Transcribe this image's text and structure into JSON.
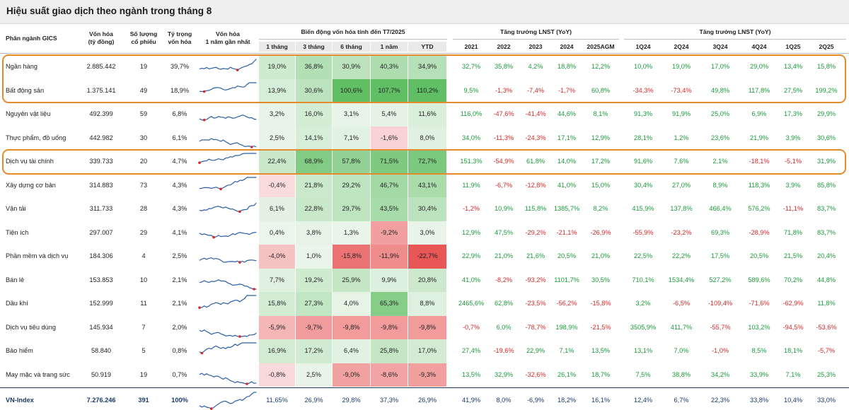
{
  "title": "Hiệu suất giao dịch theo ngành trong tháng 8",
  "headers": {
    "sector": "Phân ngành GICS",
    "mcap": [
      "Vốn hóa",
      "(tỷ đồng)"
    ],
    "count": [
      "Số lượng",
      "cổ phiếu"
    ],
    "weight": [
      "Tỷ trọng",
      "vốn hóa"
    ],
    "spark": [
      "Vốn hóa",
      "1 năm gần nhất"
    ],
    "group_change": "Biến động vốn hóa tính đến T7/2025",
    "group_lnst1": "Tăng trưởng LNST (YoY)",
    "group_lnst2": "Tăng trưởng LNST (YoY)",
    "change_cols": [
      "1 tháng",
      "3 tháng",
      "6 tháng",
      "1 năm",
      "YTD"
    ],
    "lnst1_cols": [
      "2021",
      "2022",
      "2023",
      "2024",
      "2025AGM"
    ],
    "lnst2_cols": [
      "1Q24",
      "2Q24",
      "3Q24",
      "4Q24",
      "1Q25",
      "2Q25"
    ]
  },
  "colors": {
    "positive_text": "#1a9a3a",
    "negative_text": "#d42a2a",
    "highlight_border": "#e58b2c",
    "total_text": "#1b3a6b"
  },
  "rows": [
    {
      "name": "Ngân hàng",
      "mcap": "2.885.442",
      "count": "19",
      "weight": "39,7%",
      "change": [
        "19,0%",
        "36,8%",
        "30,9%",
        "40,3%",
        "34,9%"
      ],
      "heat": [
        0.19,
        0.368,
        0.309,
        0.403,
        0.349
      ],
      "lnst1": [
        "32,7%",
        "35,8%",
        "4,2%",
        "18,8%",
        "12,2%"
      ],
      "lnst2": [
        "10,0%",
        "19,0%",
        "17,0%",
        "29,0%",
        "13,4%",
        "15,8%"
      ],
      "highlight": true
    },
    {
      "name": "Bất động sản",
      "mcap": "1.375.141",
      "count": "49",
      "weight": "18,9%",
      "change": [
        "13,9%",
        "30,6%",
        "100,6%",
        "107,7%",
        "110,2%"
      ],
      "heat": [
        0.139,
        0.306,
        1.006,
        1.077,
        1.102
      ],
      "lnst1": [
        "9,5%",
        "-1,3%",
        "-7,4%",
        "-1,7%",
        "60,8%"
      ],
      "lnst2": [
        "-34,3%",
        "-73,4%",
        "49,8%",
        "117,8%",
        "27,5%",
        "199,2%"
      ],
      "highlight": true
    },
    {
      "name": "Nguyên vật liệu",
      "mcap": "492.399",
      "count": "59",
      "weight": "6,8%",
      "change": [
        "3,2%",
        "16,0%",
        "3,1%",
        "5,4%",
        "11,6%"
      ],
      "heat": [
        0.032,
        0.16,
        0.031,
        0.054,
        0.116
      ],
      "lnst1": [
        "116,0%",
        "-47,6%",
        "-41,4%",
        "44,6%",
        "8,1%"
      ],
      "lnst2": [
        "91,3%",
        "91,9%",
        "25,0%",
        "6,9%",
        "17,3%",
        "29,9%"
      ]
    },
    {
      "name": "Thực phẩm, đồ uống",
      "mcap": "442.982",
      "count": "30",
      "weight": "6,1%",
      "change": [
        "2,5%",
        "14,1%",
        "7,1%",
        "-1,6%",
        "8,0%"
      ],
      "heat": [
        0.025,
        0.141,
        0.071,
        -0.016,
        0.08
      ],
      "lnst1": [
        "34,0%",
        "-11,3%",
        "-24,3%",
        "17,1%",
        "12,9%"
      ],
      "lnst2": [
        "28,1%",
        "1,2%",
        "23,6%",
        "21,9%",
        "3,9%",
        "30,6%"
      ]
    },
    {
      "name": "Dịch vụ tài chính",
      "mcap": "339.733",
      "count": "20",
      "weight": "4,7%",
      "change": [
        "22,4%",
        "68,9%",
        "57,8%",
        "71,5%",
        "72,7%"
      ],
      "heat": [
        0.224,
        0.689,
        0.578,
        0.715,
        0.727
      ],
      "lnst1": [
        "151,3%",
        "-54,9%",
        "61,8%",
        "14,0%",
        "17,2%"
      ],
      "lnst2": [
        "91,6%",
        "7,6%",
        "2,1%",
        "-18,1%",
        "-5,1%",
        "31,9%"
      ],
      "highlight": true
    },
    {
      "name": "Xây dựng cơ bản",
      "mcap": "314.883",
      "count": "73",
      "weight": "4,3%",
      "change": [
        "-0,4%",
        "21,8%",
        "29,2%",
        "46,7%",
        "43,1%"
      ],
      "heat": [
        -0.004,
        0.218,
        0.292,
        0.467,
        0.431
      ],
      "lnst1": [
        "11,9%",
        "-6,7%",
        "-12,8%",
        "41,0%",
        "15,0%"
      ],
      "lnst2": [
        "30,4%",
        "27,0%",
        "8,9%",
        "118,3%",
        "3,9%",
        "85,8%"
      ]
    },
    {
      "name": "Vận tải",
      "mcap": "311.733",
      "count": "28",
      "weight": "4,3%",
      "change": [
        "6,1%",
        "22,8%",
        "29,7%",
        "43,5%",
        "30,4%"
      ],
      "heat": [
        0.061,
        0.228,
        0.297,
        0.435,
        0.304
      ],
      "lnst1": [
        "-1,2%",
        "10,9%",
        "115,8%",
        "1385,7%",
        "8,2%"
      ],
      "lnst2": [
        "415,9%",
        "137,8%",
        "466,4%",
        "576,2%",
        "-11,1%",
        "83,7%"
      ]
    },
    {
      "name": "Tiện ích",
      "mcap": "297.007",
      "count": "29",
      "weight": "4,1%",
      "change": [
        "0,4%",
        "3,8%",
        "1,3%",
        "-9,2%",
        "3,0%"
      ],
      "heat": [
        0.004,
        0.038,
        0.013,
        -0.092,
        0.03
      ],
      "lnst1": [
        "12,9%",
        "47,5%",
        "-29,2%",
        "-21,1%",
        "-26,9%"
      ],
      "lnst2": [
        "-55,9%",
        "-23,2%",
        "69,3%",
        "-28,9%",
        "71,8%",
        "83,7%"
      ]
    },
    {
      "name": "Phần mềm và dịch vụ",
      "mcap": "184.306",
      "count": "4",
      "weight": "2,5%",
      "change": [
        "-4,0%",
        "1,0%",
        "-15,8%",
        "-11,9%",
        "-22,7%"
      ],
      "heat": [
        -0.04,
        0.01,
        -0.158,
        -0.119,
        -0.227
      ],
      "lnst1": [
        "22,9%",
        "21,0%",
        "21,6%",
        "20,5%",
        "21,0%"
      ],
      "lnst2": [
        "22,5%",
        "22,2%",
        "17,5%",
        "20,5%",
        "21,5%",
        "20,4%"
      ]
    },
    {
      "name": "Bán lẻ",
      "mcap": "153.853",
      "count": "10",
      "weight": "2,1%",
      "change": [
        "7,7%",
        "19,2%",
        "25,9%",
        "9,9%",
        "20,8%"
      ],
      "heat": [
        0.077,
        0.192,
        0.259,
        0.099,
        0.208
      ],
      "lnst1": [
        "41,0%",
        "-8,2%",
        "-93,2%",
        "1101,7%",
        "30,5%"
      ],
      "lnst2": [
        "710,1%",
        "1534,4%",
        "527,2%",
        "589,6%",
        "70,2%",
        "44,8%"
      ]
    },
    {
      "name": "Dầu khí",
      "mcap": "152.999",
      "count": "11",
      "weight": "2,1%",
      "change": [
        "15,8%",
        "27,3%",
        "4,0%",
        "65,3%",
        "8,8%"
      ],
      "heat": [
        0.158,
        0.273,
        0.04,
        0.653,
        0.088
      ],
      "lnst1": [
        "2465,6%",
        "62,8%",
        "-23,5%",
        "-56,2%",
        "-15,8%"
      ],
      "lnst2": [
        "3,2%",
        "-6,5%",
        "-109,4%",
        "-71,6%",
        "-62,9%",
        "11,8%"
      ]
    },
    {
      "name": "Dịch vụ tiêu dùng",
      "mcap": "145.934",
      "count": "7",
      "weight": "2,0%",
      "change": [
        "-5,9%",
        "-9,7%",
        "-9,8%",
        "-9,8%",
        "-9,8%"
      ],
      "heat": [
        -0.059,
        -0.097,
        -0.098,
        -0.098,
        -0.098
      ],
      "lnst1": [
        "-0,7%",
        "6,0%",
        "-78,7%",
        "198,9%",
        "-21,5%"
      ],
      "lnst2": [
        "3505,9%",
        "411,7%",
        "-55,7%",
        "103,2%",
        "-94,5%",
        "-53,6%"
      ]
    },
    {
      "name": "Bảo hiểm",
      "mcap": "58.840",
      "count": "5",
      "weight": "0,8%",
      "change": [
        "16,9%",
        "17,2%",
        "6,4%",
        "25,8%",
        "17,0%"
      ],
      "heat": [
        0.169,
        0.172,
        0.064,
        0.258,
        0.17
      ],
      "lnst1": [
        "27,4%",
        "-19,6%",
        "22,9%",
        "7,1%",
        "13,5%"
      ],
      "lnst2": [
        "13,1%",
        "7,0%",
        "-1,0%",
        "8,5%",
        "18,1%",
        "-5,7%"
      ]
    },
    {
      "name": "May mặc và trang sức",
      "mcap": "50.919",
      "count": "19",
      "weight": "0,7%",
      "change": [
        "-0,8%",
        "2,5%",
        "-9,0%",
        "-8,6%",
        "-9,3%"
      ],
      "heat": [
        -0.008,
        0.025,
        -0.09,
        -0.086,
        -0.093
      ],
      "lnst1": [
        "13,5%",
        "32,9%",
        "-32,6%",
        "26,1%",
        "18,7%"
      ],
      "lnst2": [
        "7,5%",
        "38,8%",
        "34,2%",
        "33,9%",
        "7,1%",
        "25,3%"
      ]
    }
  ],
  "total": {
    "name": "VN-Index",
    "mcap": "7.276.246",
    "count": "391",
    "weight": "100%",
    "change": [
      "11,65%",
      "26,9%",
      "29,8%",
      "37,3%",
      "26,9%"
    ],
    "lnst1": [
      "41,9%",
      "8,0%",
      "-6,9%",
      "18,2%",
      "16,1%"
    ],
    "lnst2": [
      "12,4%",
      "6,7%",
      "22,3%",
      "33,8%",
      "10,4%",
      "33,0%"
    ]
  }
}
